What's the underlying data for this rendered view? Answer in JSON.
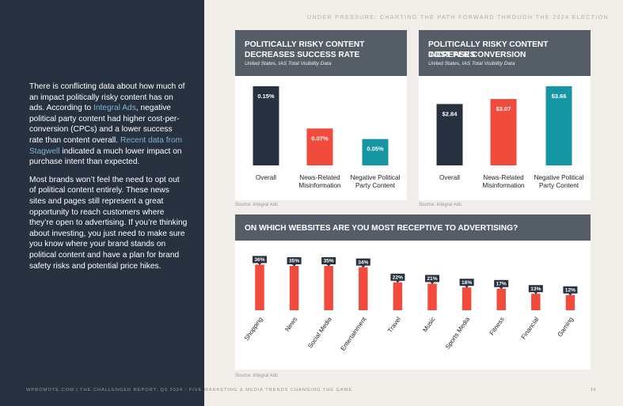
{
  "header": {
    "running_title": "UNDER PRESSURE: CHARTING THE PATH FORWARD THROUGH THE 2024 ELECTION"
  },
  "sidebar": {
    "p1": [
      {
        "text": "There is conflicting data about how much of an impact politically risky content has on ads. According to ",
        "link": false
      },
      {
        "text": "Integral Ads",
        "link": true
      },
      {
        "text": ", negative political party content had higher cost-per-conversion (CPCs) and a lower success rate than content overall. ",
        "link": false
      },
      {
        "text": "Recent data from Stagwell",
        "link": true
      },
      {
        "text": " indicated a much lower impact on purchase intent than expected.",
        "link": false
      }
    ],
    "p2": "Most brands won’t feel the need to opt out of political content entirely. These news sites and pages still represent a great opportunity to reach customers where they’re open to advertising. If you’re thinking about investing, you just need to make sure you know where your brand stands on political content and have a plan for brand safety risks and potential price hikes."
  },
  "colors": {
    "navy": "#273140",
    "red": "#f04b3c",
    "teal": "#1695a3",
    "header_gray": "#555d66"
  },
  "charts": {
    "left": {
      "title_line1": "POLITICALLY RISKY CONTENT",
      "title_line2": "DECREASES SUCCESS RATE",
      "subtitle": "United States, IAS Total Visibility Data",
      "source": "Source: Integral Ads"
    },
    "right": {
      "title_line1": "POLITICALLY RISKY CONTENT INCREASES",
      "title_line2": "COST PER CONVERSION",
      "subtitle": "United States, IAS Total Visibility Data",
      "source": "Source: Integral Ads"
    },
    "bottom": {
      "title": "ON WHICH WEBSITES ARE YOU MOST RECEPTIVE TO ADVERTISING?",
      "source": "Source: Integral Ads"
    }
  },
  "chart_data": [
    {
      "type": "bar",
      "title": "POLITICALLY RISKY CONTENT DECREASES SUCCESS RATE",
      "subtitle": "United States, IAS Total Visibility Data",
      "categories": [
        [
          "Overall"
        ],
        [
          "News-Related",
          "Misinformation"
        ],
        [
          "Negative Political",
          "Party Content"
        ]
      ],
      "values": [
        0.15,
        0.07,
        0.05
      ],
      "labels": [
        "0.15%",
        "0.07%",
        "0.05%"
      ],
      "colors": [
        "#273140",
        "#f04b3c",
        "#1695a3"
      ]
    },
    {
      "type": "bar",
      "title": "POLITICALLY RISKY CONTENT INCREASES COST PER CONVERSION",
      "subtitle": "United States, IAS Total Visibility Data",
      "categories": [
        [
          "Overall"
        ],
        [
          "News-Related",
          "Misinformation"
        ],
        [
          "Negative Political",
          "Party Content"
        ]
      ],
      "values": [
        2.84,
        3.07,
        3.66
      ],
      "labels": [
        "$2.84",
        "$3.07",
        "$3.66"
      ],
      "colors": [
        "#273140",
        "#f04b3c",
        "#1695a3"
      ]
    },
    {
      "type": "bar",
      "title": "ON WHICH WEBSITES ARE YOU MOST RECEPTIVE TO ADVERTISING?",
      "categories": [
        "Shopping",
        "News",
        "Social Media",
        "Entertainment",
        "Travel",
        "Music",
        "Sports Media",
        "Fitness",
        "Financial",
        "Gaming"
      ],
      "values": [
        36,
        35,
        35,
        34,
        22,
        21,
        18,
        17,
        13,
        12
      ],
      "labels": [
        "36%",
        "35%",
        "35%",
        "34%",
        "22%",
        "21%",
        "18%",
        "17%",
        "13%",
        "12%"
      ],
      "colors": [
        "#f04b3c"
      ]
    }
  ],
  "footer": {
    "text": "WPROMOTE.COM  |  THE CHALLENGER REPORT: Q3 2024 - FIVE MARKETING & MEDIA TRENDS CHANGING THE GAME",
    "page": "14"
  }
}
